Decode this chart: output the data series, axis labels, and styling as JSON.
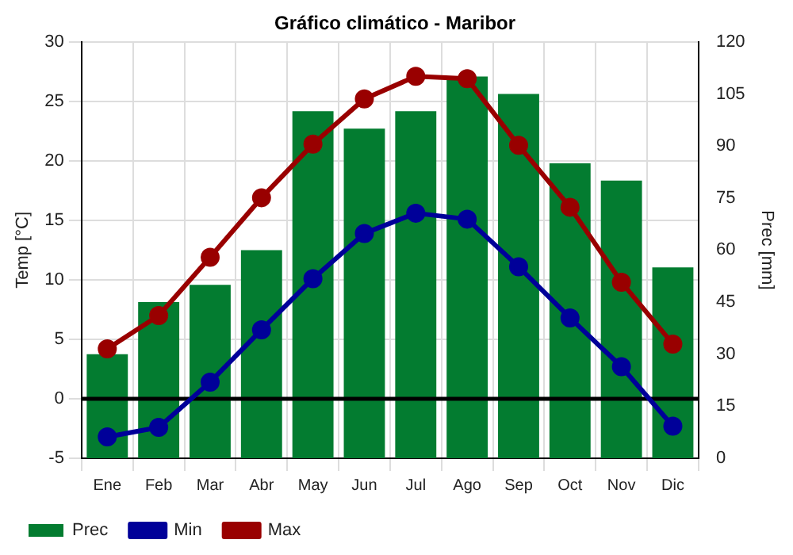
{
  "chart_data": {
    "type": "bar",
    "title": "Gráfico climático - Maribor",
    "ylabel": "Temp [°C]",
    "y2label": "Prec [mm]",
    "categories": [
      "Ene",
      "Feb",
      "Mar",
      "Abr",
      "May",
      "Jun",
      "Jul",
      "Ago",
      "Sep",
      "Oct",
      "Nov",
      "Dic"
    ],
    "series": [
      {
        "name": "Prec",
        "axis": "y2",
        "color": "#037c30",
        "values": [
          30,
          45,
          50,
          60,
          100,
          95,
          100,
          110,
          105,
          85,
          80,
          55
        ]
      },
      {
        "name": "Min",
        "type": "line",
        "color": "#000099",
        "values": [
          -3.2,
          -2.4,
          1.4,
          5.8,
          10.1,
          13.9,
          15.6,
          15.1,
          11.1,
          6.8,
          2.7,
          -2.3
        ]
      },
      {
        "name": "Max",
        "type": "line",
        "color": "#990000",
        "values": [
          4.2,
          7.0,
          11.9,
          16.9,
          21.4,
          25.2,
          27.1,
          26.9,
          21.3,
          16.1,
          9.8,
          4.6
        ]
      }
    ],
    "ylim": [
      -5,
      30
    ],
    "yticks": [
      -5,
      0,
      5,
      10,
      15,
      20,
      25,
      30
    ],
    "y2lim": [
      0,
      120
    ],
    "y2ticks": [
      0,
      15,
      30,
      45,
      60,
      75,
      90,
      105,
      120
    ],
    "ref_lines": [
      {
        "axis": "y",
        "value": 0,
        "color": "#000000"
      }
    ],
    "grid": true,
    "legend": "bottom left",
    "marker": "circle",
    "line_style": "solid"
  }
}
